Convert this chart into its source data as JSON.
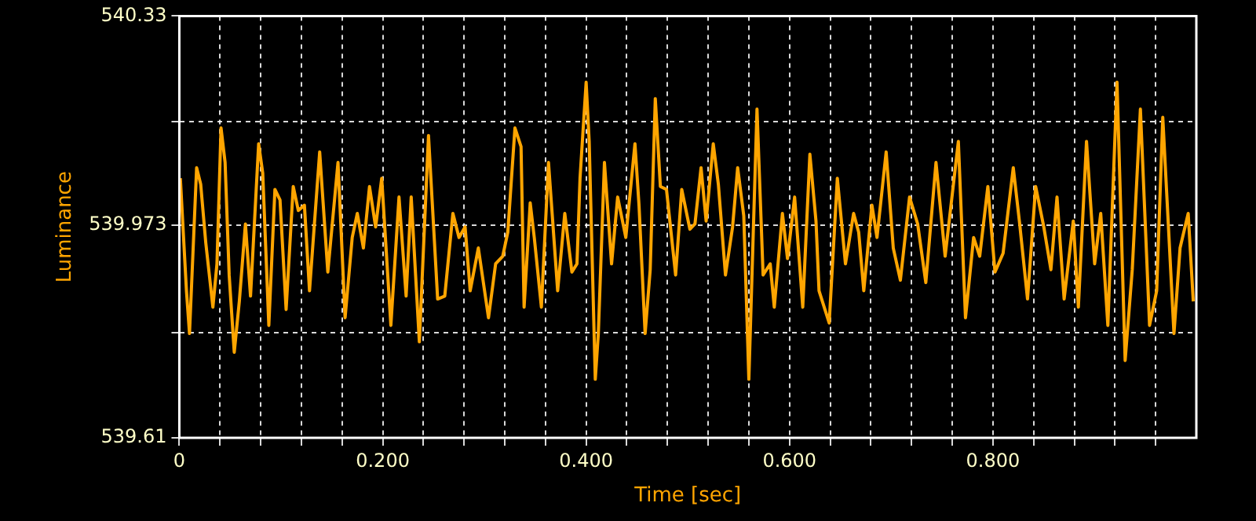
{
  "chart_data": {
    "type": "line",
    "xlabel": "Time [sec]",
    "ylabel": "Luminance",
    "xlim": [
      0,
      1.0
    ],
    "ylim": [
      539.61,
      540.33
    ],
    "xticks": [
      0,
      {
        "value": 0.04,
        "label": null
      },
      {
        "value": 0.08,
        "label": null
      },
      {
        "value": 0.12,
        "label": null
      },
      {
        "value": 0.16,
        "label": null
      },
      {
        "value": 0.2,
        "label": "0.200"
      },
      {
        "value": 0.24,
        "label": null
      },
      {
        "value": 0.28,
        "label": null
      },
      {
        "value": 0.32,
        "label": null
      },
      {
        "value": 0.36,
        "label": null
      },
      {
        "value": 0.4,
        "label": "0.400"
      },
      {
        "value": 0.44,
        "label": null
      },
      {
        "value": 0.48,
        "label": null
      },
      {
        "value": 0.52,
        "label": null
      },
      {
        "value": 0.56,
        "label": null
      },
      {
        "value": 0.6,
        "label": "0.600"
      },
      {
        "value": 0.64,
        "label": null
      },
      {
        "value": 0.68,
        "label": null
      },
      {
        "value": 0.72,
        "label": null
      },
      {
        "value": 0.76,
        "label": null
      },
      {
        "value": 0.8,
        "label": "0.800"
      },
      {
        "value": 0.84,
        "label": null
      },
      {
        "value": 0.88,
        "label": null
      },
      {
        "value": 0.92,
        "label": null
      },
      {
        "value": 0.96,
        "label": null
      }
    ],
    "yticks": [
      539.61,
      {
        "value": 539.79,
        "label": null
      },
      539.973,
      {
        "value": 540.15,
        "label": null
      },
      540.33
    ],
    "grid": true,
    "legend": false,
    "marker": "none",
    "line_style": "solid",
    "x": [
      0.001,
      0.007,
      0.01,
      0.017,
      0.021,
      0.026,
      0.033,
      0.037,
      0.041,
      0.045,
      0.049,
      0.054,
      0.059,
      0.065,
      0.07,
      0.078,
      0.082,
      0.088,
      0.094,
      0.099,
      0.105,
      0.112,
      0.117,
      0.123,
      0.128,
      0.138,
      0.146,
      0.156,
      0.163,
      0.17,
      0.175,
      0.181,
      0.187,
      0.193,
      0.199,
      0.208,
      0.216,
      0.223,
      0.228,
      0.236,
      0.245,
      0.254,
      0.261,
      0.269,
      0.275,
      0.281,
      0.286,
      0.294,
      0.304,
      0.311,
      0.318,
      0.323,
      0.33,
      0.336,
      0.339,
      0.345,
      0.349,
      0.356,
      0.363,
      0.372,
      0.379,
      0.386,
      0.391,
      0.394,
      0.4,
      0.403,
      0.409,
      0.412,
      0.418,
      0.425,
      0.431,
      0.439,
      0.448,
      0.452,
      0.458,
      0.463,
      0.468,
      0.473,
      0.479,
      0.488,
      0.494,
      0.502,
      0.507,
      0.513,
      0.518,
      0.525,
      0.53,
      0.537,
      0.544,
      0.549,
      0.555,
      0.56,
      0.568,
      0.574,
      0.581,
      0.585,
      0.593,
      0.598,
      0.605,
      0.613,
      0.62,
      0.626,
      0.629,
      0.639,
      0.647,
      0.655,
      0.663,
      0.668,
      0.673,
      0.681,
      0.686,
      0.695,
      0.702,
      0.709,
      0.718,
      0.726,
      0.734,
      0.744,
      0.753,
      0.766,
      0.773,
      0.781,
      0.787,
      0.795,
      0.802,
      0.81,
      0.82,
      0.826,
      0.834,
      0.842,
      0.85,
      0.857,
      0.863,
      0.87,
      0.879,
      0.884,
      0.892,
      0.9,
      0.906,
      0.913,
      0.922,
      0.93,
      0.937,
      0.945,
      0.954,
      0.961,
      0.967,
      0.978,
      0.984,
      0.992,
      0.997
    ],
    "series": [
      {
        "color": "#ffa500",
        "values": [
          540.053,
          539.861,
          539.788,
          540.071,
          540.043,
          539.943,
          539.833,
          539.907,
          540.139,
          540.08,
          539.888,
          539.756,
          539.843,
          539.975,
          539.852,
          540.112,
          540.062,
          539.802,
          540.034,
          540.016,
          539.829,
          540.039,
          539.998,
          540.007,
          539.861,
          540.098,
          539.893,
          540.08,
          539.815,
          539.952,
          539.993,
          539.934,
          540.039,
          539.97,
          540.053,
          539.802,
          540.021,
          539.852,
          540.021,
          539.774,
          540.126,
          539.847,
          539.852,
          539.993,
          539.952,
          539.97,
          539.861,
          539.934,
          539.815,
          539.907,
          539.92,
          539.961,
          540.139,
          540.107,
          539.833,
          540.011,
          539.952,
          539.833,
          540.08,
          539.861,
          539.993,
          539.893,
          539.907,
          540.053,
          540.217,
          540.116,
          539.71,
          539.788,
          540.08,
          539.907,
          540.021,
          539.952,
          540.112,
          540.007,
          539.788,
          539.897,
          540.189,
          540.039,
          540.034,
          539.888,
          540.034,
          539.966,
          539.975,
          540.071,
          539.98,
          540.112,
          540.043,
          539.888,
          539.97,
          540.071,
          539.989,
          539.71,
          540.171,
          539.888,
          539.907,
          539.833,
          539.993,
          539.916,
          540.021,
          539.833,
          540.094,
          539.98,
          539.861,
          539.806,
          540.053,
          539.907,
          539.993,
          539.961,
          539.861,
          540.007,
          539.952,
          540.098,
          539.934,
          539.879,
          540.021,
          539.975,
          539.875,
          540.08,
          539.92,
          540.116,
          539.815,
          539.952,
          539.92,
          540.039,
          539.893,
          539.925,
          540.071,
          539.98,
          539.847,
          540.039,
          539.97,
          539.897,
          540.021,
          539.847,
          539.98,
          539.833,
          540.116,
          539.907,
          539.993,
          539.802,
          540.217,
          539.742,
          539.897,
          540.171,
          539.802,
          539.861,
          540.157,
          539.788,
          539.934,
          539.993,
          539.843
        ]
      }
    ]
  }
}
